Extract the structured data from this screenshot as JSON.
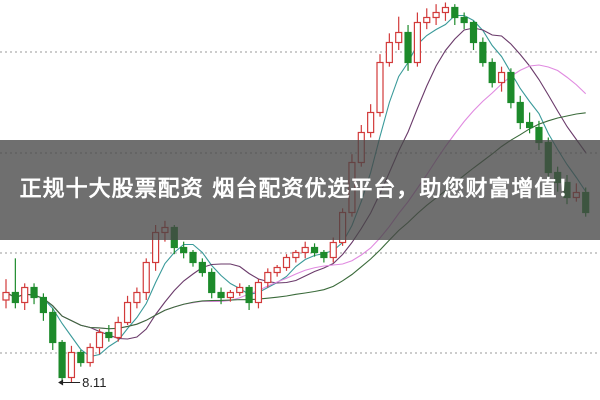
{
  "banner": {
    "title": "正规十大股票配资 烟台配资优选平台，助您财富增值！"
  },
  "chart_data": {
    "type": "candlestick",
    "title": "",
    "ylim": [
      7.9,
      12.7
    ],
    "grid": "dotted horizontal",
    "colors": {
      "up": "#d23a3a",
      "down": "#1d8a2b",
      "ma_lines": [
        "#3a9a9a",
        "#6a3a6a",
        "#e08ae0",
        "#3a6a3a"
      ]
    },
    "annotation": {
      "label": "8.11",
      "value": 8.11,
      "candle_index": 6
    },
    "candles": [
      [
        9.1,
        9.35,
        9.0,
        9.19
      ],
      [
        9.19,
        9.6,
        9.0,
        9.07
      ],
      [
        9.07,
        9.3,
        8.98,
        9.25
      ],
      [
        9.25,
        9.3,
        9.05,
        9.13
      ],
      [
        9.13,
        9.18,
        8.85,
        8.95
      ],
      [
        8.95,
        9.0,
        8.5,
        8.59
      ],
      [
        8.59,
        8.62,
        8.11,
        8.17
      ],
      [
        8.17,
        8.55,
        8.11,
        8.47
      ],
      [
        8.47,
        8.5,
        8.3,
        8.35
      ],
      [
        8.35,
        8.58,
        8.3,
        8.53
      ],
      [
        8.53,
        8.75,
        8.45,
        8.71
      ],
      [
        8.71,
        8.8,
        8.6,
        8.65
      ],
      [
        8.65,
        8.9,
        8.6,
        8.83
      ],
      [
        8.83,
        9.15,
        8.8,
        9.07
      ],
      [
        9.07,
        9.25,
        9.0,
        9.19
      ],
      [
        9.19,
        9.6,
        9.1,
        9.55
      ],
      [
        9.55,
        10.0,
        9.45,
        9.91
      ],
      [
        9.91,
        10.05,
        9.8,
        9.97
      ],
      [
        9.97,
        10.0,
        9.65,
        9.73
      ],
      [
        9.73,
        9.8,
        9.6,
        9.67
      ],
      [
        9.67,
        9.7,
        9.5,
        9.55
      ],
      [
        9.55,
        9.6,
        9.38,
        9.43
      ],
      [
        9.43,
        9.48,
        9.12,
        9.19
      ],
      [
        9.19,
        9.25,
        9.05,
        9.13
      ],
      [
        9.13,
        9.22,
        9.08,
        9.19
      ],
      [
        9.19,
        9.3,
        9.15,
        9.25
      ],
      [
        9.25,
        9.28,
        8.98,
        9.07
      ],
      [
        9.07,
        9.35,
        9.0,
        9.31
      ],
      [
        9.31,
        9.48,
        9.25,
        9.43
      ],
      [
        9.43,
        9.52,
        9.38,
        9.49
      ],
      [
        9.49,
        9.65,
        9.45,
        9.61
      ],
      [
        9.61,
        9.7,
        9.55,
        9.67
      ],
      [
        9.67,
        9.8,
        9.6,
        9.73
      ],
      [
        9.73,
        9.78,
        9.62,
        9.67
      ],
      [
        9.67,
        9.7,
        9.55,
        9.61
      ],
      [
        9.61,
        9.85,
        9.55,
        9.79
      ],
      [
        9.79,
        10.2,
        9.75,
        10.15
      ],
      [
        10.15,
        10.85,
        10.1,
        10.75
      ],
      [
        10.75,
        11.2,
        10.7,
        11.11
      ],
      [
        11.11,
        11.45,
        11.05,
        11.35
      ],
      [
        11.35,
        12.05,
        11.3,
        11.95
      ],
      [
        11.95,
        12.3,
        11.9,
        12.19
      ],
      [
        12.19,
        12.5,
        12.1,
        12.31
      ],
      [
        12.31,
        12.4,
        11.85,
        11.95
      ],
      [
        11.95,
        12.55,
        11.9,
        12.43
      ],
      [
        12.43,
        12.6,
        12.35,
        12.49
      ],
      [
        12.49,
        12.65,
        12.4,
        12.55
      ],
      [
        12.55,
        12.67,
        12.45,
        12.61
      ],
      [
        12.61,
        12.65,
        12.4,
        12.49
      ],
      [
        12.49,
        12.55,
        12.35,
        12.43
      ],
      [
        12.43,
        12.45,
        12.1,
        12.19
      ],
      [
        12.19,
        12.25,
        11.9,
        11.95
      ],
      [
        11.95,
        12.0,
        11.65,
        11.71
      ],
      [
        11.71,
        11.9,
        11.6,
        11.83
      ],
      [
        11.83,
        11.88,
        11.4,
        11.47
      ],
      [
        11.47,
        11.55,
        11.15,
        11.23
      ],
      [
        11.23,
        11.35,
        11.1,
        11.17
      ],
      [
        11.17,
        11.25,
        10.9,
        10.99
      ],
      [
        10.99,
        11.05,
        10.55,
        10.63
      ],
      [
        10.63,
        10.7,
        10.4,
        10.51
      ],
      [
        10.51,
        10.6,
        10.25,
        10.33
      ],
      [
        10.33,
        10.5,
        10.28,
        10.39
      ],
      [
        10.39,
        10.45,
        10.1,
        10.15
      ]
    ]
  }
}
